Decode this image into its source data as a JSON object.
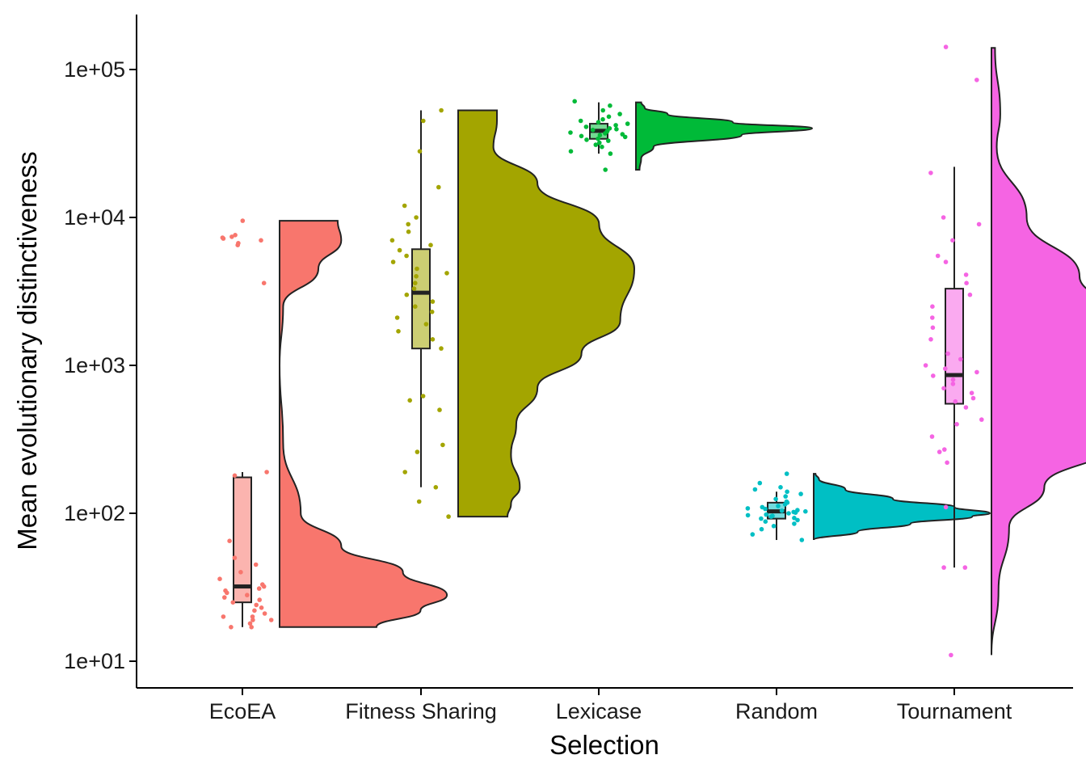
{
  "chart_data": {
    "type": "raincloud",
    "title": "",
    "xlabel": "Selection",
    "ylabel": "Mean evolutionary distinctiveness",
    "y_scale": "log10",
    "ylim": [
      6.3,
      240000
    ],
    "y_ticks": [
      10,
      100,
      1000,
      10000,
      100000
    ],
    "y_tick_labels": [
      "1e+01",
      "1e+02",
      "1e+03",
      "1e+04",
      "1e+05"
    ],
    "categories": [
      "EcoEA",
      "Fitness Sharing",
      "Lexicase",
      "Random",
      "Tournament"
    ],
    "grid": false,
    "legend": "none",
    "series": [
      {
        "category": "EcoEA",
        "color": "#F8766D",
        "box": {
          "whisker_low": 17,
          "q1": 25,
          "median": 32,
          "q3": 175,
          "whisker_high": 190
        },
        "density": [
          [
            17,
            0.55
          ],
          [
            22,
            0.8
          ],
          [
            28,
            0.95
          ],
          [
            40,
            0.7
          ],
          [
            60,
            0.35
          ],
          [
            100,
            0.12
          ],
          [
            300,
            0.02
          ],
          [
            1000,
            0.0
          ],
          [
            2500,
            0.02
          ],
          [
            4500,
            0.22
          ],
          [
            7000,
            0.35
          ],
          [
            9500,
            0.33
          ]
        ],
        "points": [
          17,
          17,
          18,
          19,
          19,
          20,
          20,
          21,
          22,
          23,
          24,
          25,
          26,
          27,
          28,
          29,
          30,
          31,
          32,
          33,
          36,
          40,
          45,
          50,
          65,
          180,
          190,
          3600,
          6500,
          6700,
          7000,
          7200,
          7300,
          7400,
          7600,
          9500
        ]
      },
      {
        "category": "Fitness Sharing",
        "color": "#A3A500",
        "box": {
          "whisker_low": 150,
          "q1": 1300,
          "median": 3100,
          "q3": 6100,
          "whisker_high": 53000
        },
        "density": [
          [
            95,
            0.28
          ],
          [
            115,
            0.3
          ],
          [
            150,
            0.35
          ],
          [
            250,
            0.3
          ],
          [
            400,
            0.33
          ],
          [
            700,
            0.45
          ],
          [
            1200,
            0.7
          ],
          [
            2000,
            0.92
          ],
          [
            4500,
            1.0
          ],
          [
            9000,
            0.8
          ],
          [
            17000,
            0.45
          ],
          [
            30000,
            0.2
          ],
          [
            45000,
            0.22
          ],
          [
            53000,
            0.22
          ]
        ],
        "points": [
          95,
          120,
          150,
          190,
          260,
          290,
          500,
          580,
          620,
          1300,
          1500,
          1700,
          1900,
          2100,
          2300,
          2500,
          2700,
          3000,
          3300,
          3600,
          4000,
          4200,
          4500,
          5000,
          5500,
          6000,
          6500,
          7000,
          8000,
          9000,
          10000,
          12000,
          16000,
          28000,
          45000,
          53000
        ]
      },
      {
        "category": "Lexicase",
        "color": "#00BA38",
        "box": {
          "whisker_low": 27000,
          "q1": 34000,
          "median": 38500,
          "q3": 43000,
          "whisker_high": 60000
        },
        "density": [
          [
            21000,
            0.02
          ],
          [
            25000,
            0.03
          ],
          [
            30000,
            0.1
          ],
          [
            36000,
            0.6
          ],
          [
            40000,
            1.0
          ],
          [
            44000,
            0.55
          ],
          [
            50000,
            0.18
          ],
          [
            55000,
            0.05
          ],
          [
            60000,
            0.03
          ]
        ],
        "points": [
          21000,
          27000,
          28000,
          30000,
          31000,
          32000,
          33000,
          33500,
          34000,
          35000,
          35500,
          36000,
          36500,
          37000,
          37500,
          38000,
          38500,
          39000,
          39500,
          40000,
          41000,
          42000,
          43000,
          44000,
          45000,
          46000,
          48000,
          50000,
          53000,
          57000,
          61000
        ]
      },
      {
        "category": "Random",
        "color": "#00BFC4",
        "box": {
          "whisker_low": 66,
          "q1": 92,
          "median": 103,
          "q3": 118,
          "whisker_high": 140
        },
        "density": [
          [
            66,
            0.0
          ],
          [
            75,
            0.25
          ],
          [
            85,
            0.55
          ],
          [
            95,
            0.9
          ],
          [
            100,
            1.0
          ],
          [
            110,
            0.8
          ],
          [
            125,
            0.45
          ],
          [
            145,
            0.18
          ],
          [
            170,
            0.03
          ],
          [
            185,
            0.01
          ]
        ],
        "points": [
          66,
          72,
          78,
          82,
          85,
          88,
          90,
          92,
          93,
          95,
          96,
          97,
          98,
          100,
          101,
          102,
          103,
          104,
          105,
          107,
          108,
          110,
          112,
          115,
          118,
          120,
          125,
          130,
          135,
          140,
          145,
          150,
          160,
          185
        ]
      },
      {
        "category": "Tournament",
        "color": "#F564E3",
        "box": {
          "whisker_low": 43,
          "q1": 550,
          "median": 860,
          "q3": 3300,
          "whisker_high": 22000
        },
        "density": [
          [
            11,
            0.0
          ],
          [
            30,
            0.04
          ],
          [
            80,
            0.1
          ],
          [
            150,
            0.3
          ],
          [
            300,
            0.7
          ],
          [
            600,
            0.98
          ],
          [
            1000,
            1.0
          ],
          [
            2000,
            0.8
          ],
          [
            4000,
            0.5
          ],
          [
            10000,
            0.2
          ],
          [
            30000,
            0.03
          ],
          [
            50000,
            0.05
          ],
          [
            140000,
            0.02
          ]
        ],
        "points": [
          11,
          43,
          43,
          110,
          220,
          260,
          270,
          330,
          400,
          430,
          520,
          570,
          600,
          650,
          700,
          750,
          800,
          850,
          900,
          950,
          1000,
          1100,
          1200,
          1500,
          1800,
          2100,
          2500,
          3000,
          3600,
          4100,
          5000,
          5500,
          7000,
          9000,
          10000,
          20000,
          85000,
          142000
        ]
      }
    ]
  }
}
